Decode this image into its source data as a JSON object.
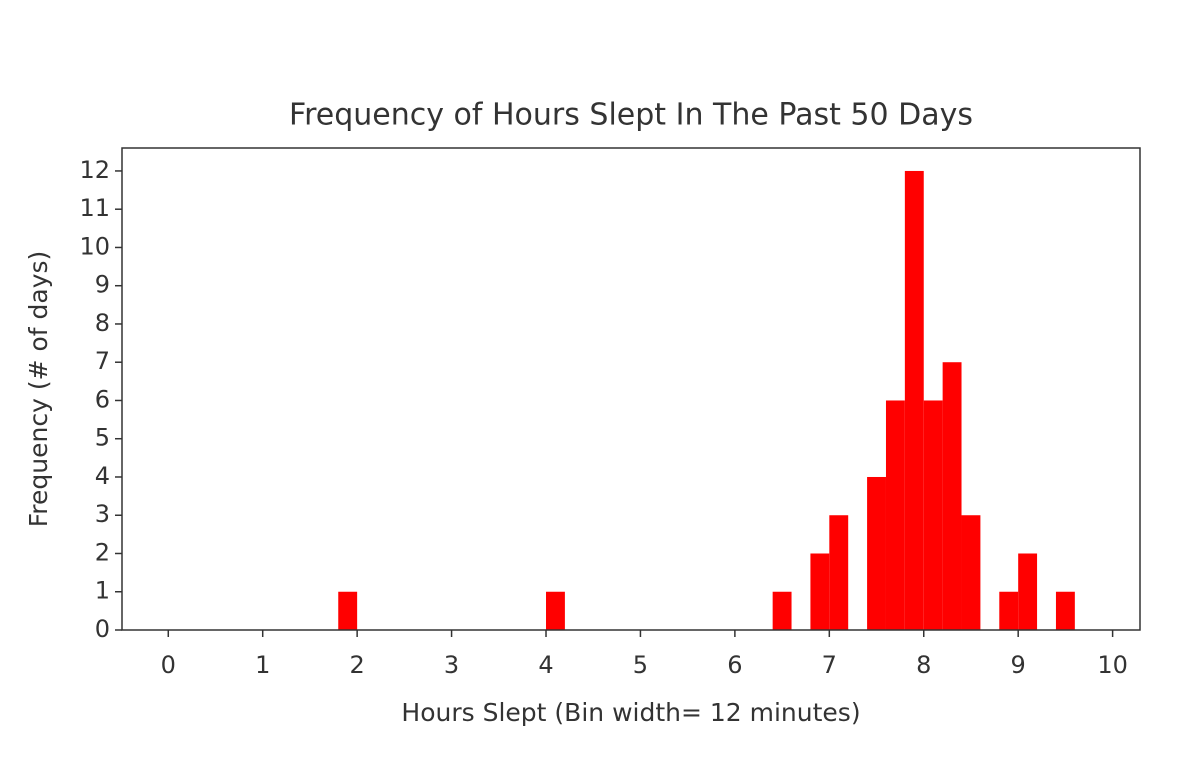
{
  "chart_data": {
    "type": "histogram",
    "title": "Frequency of Hours Slept In The Past 50 Days",
    "x_label": "Hours Slept (Bin width= 12 minutes)",
    "y_label": "Frequency (# of days)",
    "bins": [
      0,
      0.2,
      0.4,
      0.6,
      0.8,
      1,
      1.2,
      1.4,
      1.6,
      1.8,
      2,
      2.2,
      2.4,
      2.6,
      2.8,
      3,
      3.2,
      3.4,
      3.6,
      3.8,
      4,
      4.2,
      4.4,
      4.6,
      4.8,
      5,
      5.2,
      5.4,
      5.6,
      5.8,
      6,
      6.2,
      6.4,
      6.6,
      6.8,
      7,
      7.2,
      7.4,
      7.6,
      7.8,
      8,
      8.2,
      8.4,
      8.6,
      8.8,
      9,
      9.2,
      9.4,
      9.6,
      9.8,
      10
    ],
    "values": [
      0,
      0,
      0,
      0,
      0,
      0,
      0,
      0,
      0,
      1,
      0,
      0,
      0,
      0,
      0,
      0,
      0,
      0,
      0,
      0,
      1,
      0,
      0,
      0,
      0,
      0,
      0,
      0,
      0,
      0,
      0,
      0,
      1,
      0,
      2,
      3,
      0,
      4,
      6,
      12,
      6,
      7,
      3,
      0,
      1,
      2,
      0,
      1,
      0,
      0
    ],
    "color": "#ff0000",
    "xlim": [
      -0.49,
      10.29
    ],
    "ylim": [
      0,
      12.6
    ],
    "xticks": [
      0,
      1,
      2,
      3,
      4,
      5,
      6,
      7,
      8,
      9,
      10
    ],
    "yticks": [
      0,
      1,
      2,
      3,
      4,
      5,
      6,
      7,
      8,
      9,
      10,
      11,
      12
    ],
    "grid": false
  }
}
